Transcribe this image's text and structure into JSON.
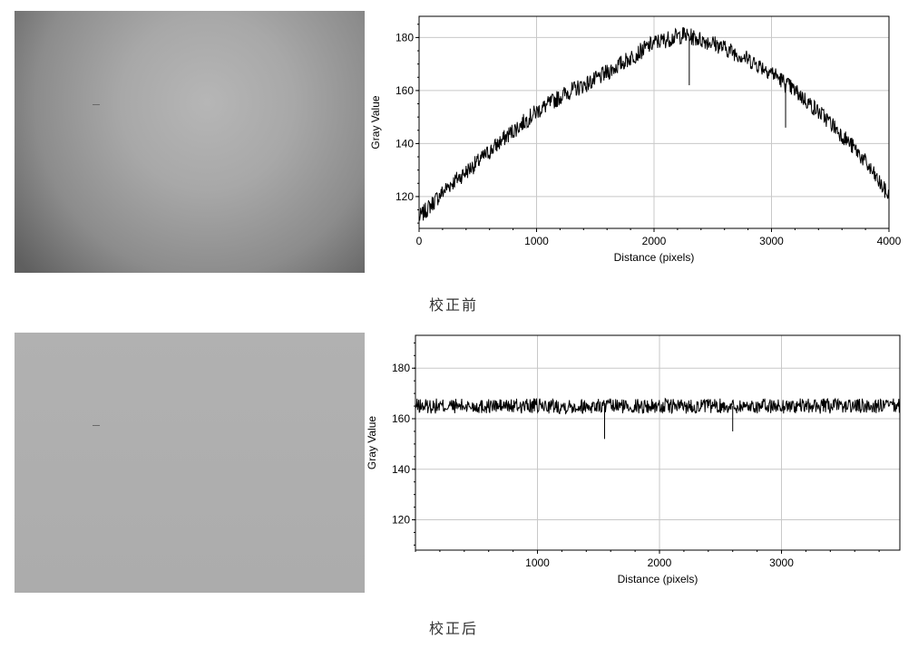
{
  "captions": {
    "before": "校正前",
    "after": "校正后"
  },
  "colors": {
    "line": "#000000",
    "grid": "#c8c8c8",
    "frame": "#000000"
  },
  "chart_data": [
    {
      "type": "line",
      "title": "",
      "xlabel": "Distance (pixels)",
      "ylabel": "Gray Value",
      "xlim": [
        0,
        4000
      ],
      "ylim": [
        108,
        188
      ],
      "xticks": [
        0,
        1000,
        2000,
        3000,
        4000
      ],
      "yticks": [
        120,
        140,
        160,
        180
      ],
      "grid": true,
      "series": [
        {
          "x": [
            0,
            250,
            500,
            750,
            1000,
            1250,
            1500,
            1750,
            2000,
            2250,
            2500,
            2750,
            3000,
            3250,
            3500,
            3750,
            4000
          ],
          "values": [
            112,
            124,
            133,
            143,
            152,
            159,
            164,
            171,
            178,
            181,
            178,
            173,
            167,
            158,
            148,
            136,
            120
          ]
        }
      ],
      "annotations": [
        {
          "x": 2300,
          "y": 162,
          "kind": "dip"
        },
        {
          "x": 3120,
          "y": 146,
          "kind": "dip"
        }
      ]
    },
    {
      "type": "line",
      "title": "",
      "xlabel": "Distance (pixels)",
      "ylabel": "Gray Value",
      "xlim": [
        0,
        3970
      ],
      "ylim": [
        108,
        193
      ],
      "xticks": [
        1000,
        2000,
        3000
      ],
      "yticks": [
        120,
        140,
        160,
        180
      ],
      "grid": true,
      "series": [
        {
          "x": [
            0,
            1000,
            2000,
            3000,
            3970
          ],
          "values": [
            165,
            165,
            165,
            165,
            165
          ]
        }
      ],
      "annotations": [
        {
          "x": 1550,
          "y": 152,
          "kind": "dip"
        },
        {
          "x": 2600,
          "y": 155,
          "kind": "dip"
        }
      ]
    }
  ]
}
